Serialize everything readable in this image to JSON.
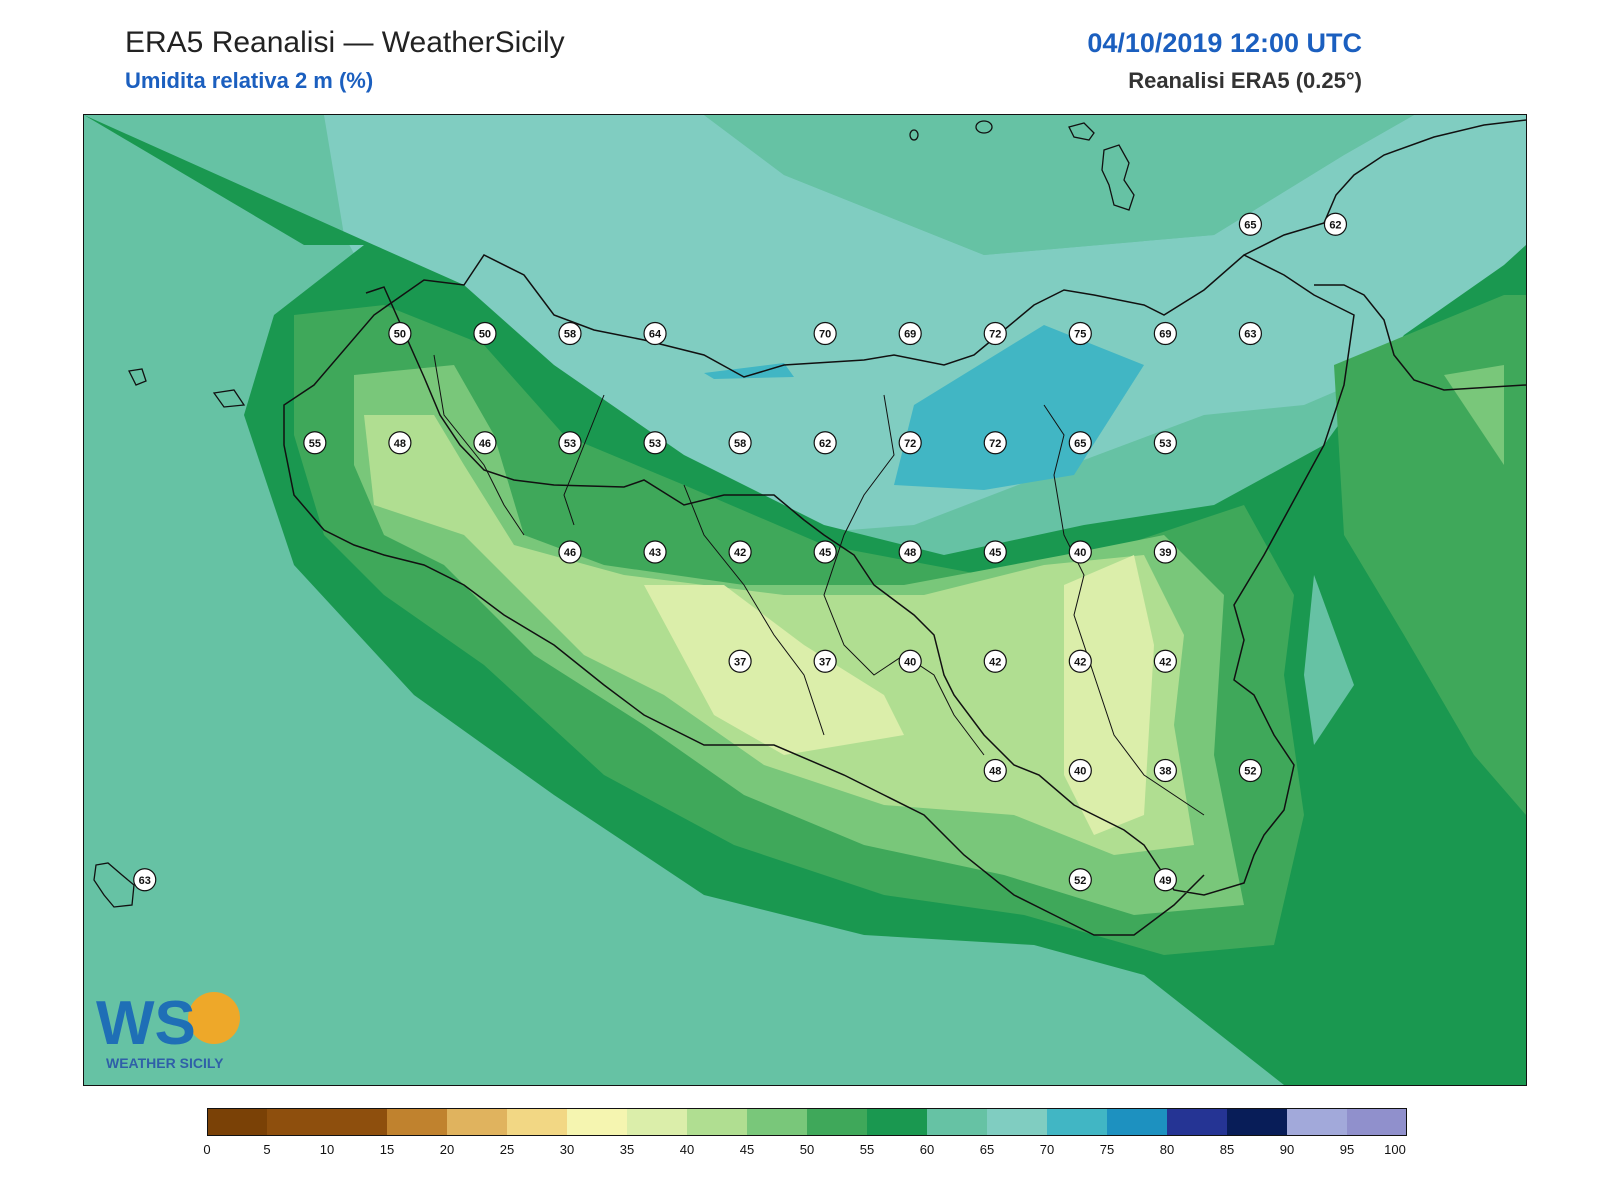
{
  "header": {
    "title_left": "ERA5 Reanalisi — WeatherSicily",
    "subtitle_left": "Umidita relativa 2 m (%)",
    "title_right": "04/10/2019 12:00 UTC",
    "subtitle_right": "Reanalisi ERA5 (0.25°)"
  },
  "logo": {
    "text": "WEATHER SICILY",
    "monogram": "WS"
  },
  "colorbar": {
    "ticks": [
      "0",
      "5",
      "10",
      "15",
      "20",
      "25",
      "30",
      "35",
      "40",
      "45",
      "50",
      "55",
      "60",
      "65",
      "70",
      "75",
      "80",
      "85",
      "90",
      "95",
      "100"
    ],
    "colors": [
      "#7a4106",
      "#8e4f0d",
      "#8e4f0d",
      "#c0822e",
      "#e0b35e",
      "#f2d784",
      "#f5f5b0",
      "#dbeeaa",
      "#b0de91",
      "#79c77a",
      "#3fa85a",
      "#1a9850",
      "#66c2a4",
      "#80cdc1",
      "#41b6c4",
      "#1d91c0",
      "#253494",
      "#081d58",
      "#a2a9da",
      "#9090cc"
    ]
  },
  "stations": [
    {
      "value": "50",
      "lon": 12.55,
      "lat": 38.3
    },
    {
      "value": "50",
      "lon": 12.9,
      "lat": 38.3
    },
    {
      "value": "58",
      "lon": 13.25,
      "lat": 38.3
    },
    {
      "value": "64",
      "lon": 13.6,
      "lat": 38.3
    },
    {
      "value": "70",
      "lon": 14.3,
      "lat": 38.3
    },
    {
      "value": "69",
      "lon": 14.65,
      "lat": 38.3
    },
    {
      "value": "72",
      "lon": 15.0,
      "lat": 38.3
    },
    {
      "value": "75",
      "lon": 15.35,
      "lat": 38.3
    },
    {
      "value": "69",
      "lon": 15.7,
      "lat": 38.3
    },
    {
      "value": "63",
      "lon": 16.05,
      "lat": 38.3
    },
    {
      "value": "65",
      "lon": 16.05,
      "lat": 38.55
    },
    {
      "value": "62",
      "lon": 16.4,
      "lat": 38.55
    },
    {
      "value": "55",
      "lon": 12.2,
      "lat": 38.05
    },
    {
      "value": "48",
      "lon": 12.55,
      "lat": 38.05
    },
    {
      "value": "46",
      "lon": 12.9,
      "lat": 38.05
    },
    {
      "value": "53",
      "lon": 13.25,
      "lat": 38.05
    },
    {
      "value": "53",
      "lon": 13.6,
      "lat": 38.05
    },
    {
      "value": "58",
      "lon": 13.95,
      "lat": 38.05
    },
    {
      "value": "62",
      "lon": 14.3,
      "lat": 38.05
    },
    {
      "value": "72",
      "lon": 14.65,
      "lat": 38.05
    },
    {
      "value": "72",
      "lon": 15.0,
      "lat": 38.05
    },
    {
      "value": "65",
      "lon": 15.35,
      "lat": 38.05
    },
    {
      "value": "53",
      "lon": 15.7,
      "lat": 38.05
    },
    {
      "value": "46",
      "lon": 13.25,
      "lat": 37.8
    },
    {
      "value": "43",
      "lon": 13.6,
      "lat": 37.8
    },
    {
      "value": "42",
      "lon": 13.95,
      "lat": 37.8
    },
    {
      "value": "45",
      "lon": 14.3,
      "lat": 37.8
    },
    {
      "value": "48",
      "lon": 14.65,
      "lat": 37.8
    },
    {
      "value": "45",
      "lon": 15.0,
      "lat": 37.8
    },
    {
      "value": "40",
      "lon": 15.35,
      "lat": 37.8
    },
    {
      "value": "39",
      "lon": 15.7,
      "lat": 37.8
    },
    {
      "value": "37",
      "lon": 13.95,
      "lat": 37.55
    },
    {
      "value": "37",
      "lon": 14.3,
      "lat": 37.55
    },
    {
      "value": "40",
      "lon": 14.65,
      "lat": 37.55
    },
    {
      "value": "42",
      "lon": 15.0,
      "lat": 37.55
    },
    {
      "value": "42",
      "lon": 15.35,
      "lat": 37.55
    },
    {
      "value": "42",
      "lon": 15.7,
      "lat": 37.55
    },
    {
      "value": "48",
      "lon": 15.0,
      "lat": 37.3
    },
    {
      "value": "40",
      "lon": 15.35,
      "lat": 37.3
    },
    {
      "value": "38",
      "lon": 15.7,
      "lat": 37.3
    },
    {
      "value": "52",
      "lon": 16.05,
      "lat": 37.3
    },
    {
      "value": "52",
      "lon": 15.35,
      "lat": 37.05
    },
    {
      "value": "49",
      "lon": 15.7,
      "lat": 37.05
    },
    {
      "value": "63",
      "lon": 11.5,
      "lat": 37.05
    }
  ]
}
